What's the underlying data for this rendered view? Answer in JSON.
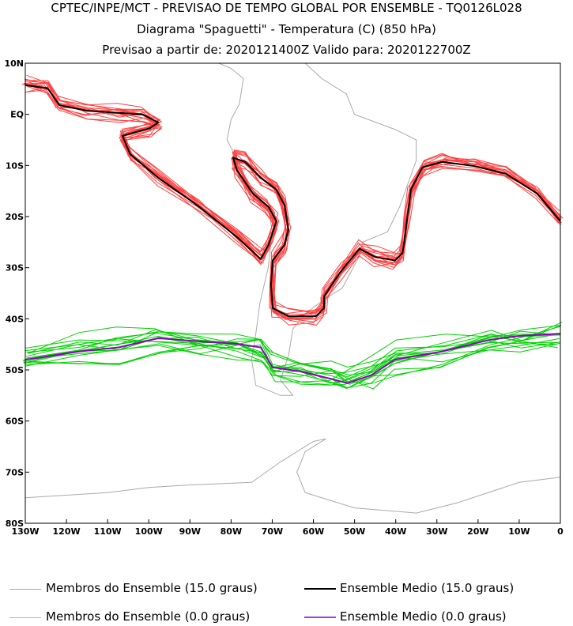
{
  "header": {
    "line1": "CPTEC/INPE/MCT - PREVISAO DE TEMPO GLOBAL POR ENSEMBLE - TQ0126L028",
    "line2": "Diagrama \"Spaguetti\" - Temperatura (C) (850 hPa)",
    "line3": "Previsao a partir de: 2020121400Z  Valido para: 2020122700Z"
  },
  "legend": [
    {
      "label": "Membros do Ensemble (15.0 graus)",
      "color": "#ff4040"
    },
    {
      "label": "Ensemble Medio (15.0 graus)",
      "color": "#000000"
    },
    {
      "label": "Membros do Ensemble (0.0 graus)",
      "color": "#00d000"
    },
    {
      "label": "Ensemble Medio (0.0 graus)",
      "color": "#9000c0"
    }
  ],
  "chart_data": {
    "type": "line",
    "title": "Diagrama \"Spaguetti\" - Temperatura (C) (850 hPa)",
    "xlim": [
      -130,
      0
    ],
    "ylim": [
      -80,
      10
    ],
    "lat_ticks": [
      {
        "v": 10,
        "l": "10N"
      },
      {
        "v": 0,
        "l": "EQ"
      },
      {
        "v": -10,
        "l": "10S"
      },
      {
        "v": -20,
        "l": "20S"
      },
      {
        "v": -30,
        "l": "30S"
      },
      {
        "v": -40,
        "l": "40S"
      },
      {
        "v": -50,
        "l": "50S"
      },
      {
        "v": -60,
        "l": "60S"
      },
      {
        "v": -70,
        "l": "70S"
      },
      {
        "v": -80,
        "l": "80S"
      }
    ],
    "lon_ticks": [
      {
        "v": -130,
        "l": "130W"
      },
      {
        "v": -120,
        "l": "120W"
      },
      {
        "v": -110,
        "l": "110W"
      },
      {
        "v": -100,
        "l": "100W"
      },
      {
        "v": -90,
        "l": "90W"
      },
      {
        "v": -80,
        "l": "80W"
      },
      {
        "v": -70,
        "l": "70W"
      },
      {
        "v": -60,
        "l": "60W"
      },
      {
        "v": -50,
        "l": "50W"
      },
      {
        "v": -40,
        "l": "40W"
      },
      {
        "v": -30,
        "l": "30W"
      },
      {
        "v": -20,
        "l": "20W"
      },
      {
        "v": -10,
        "l": "10W"
      },
      {
        "v": 0,
        "l": "0"
      }
    ],
    "series": [
      {
        "name": "Ensemble Medio (15.0 graus)",
        "color": "#000000",
        "points": [
          [
            -130,
            5.7
          ],
          [
            -124.6,
            5.1
          ],
          [
            -121.7,
            1.8
          ],
          [
            -115,
            0.7
          ],
          [
            -107.3,
            0.3
          ],
          [
            -101.5,
            0
          ],
          [
            -97.7,
            -1.6
          ],
          [
            -99.7,
            -2.7
          ],
          [
            -106.4,
            -4.2
          ],
          [
            -104.5,
            -7.8
          ],
          [
            -97.7,
            -12.4
          ],
          [
            -88.2,
            -17.8
          ],
          [
            -78.6,
            -24
          ],
          [
            -72.8,
            -28.3
          ],
          [
            -70.9,
            -25.5
          ],
          [
            -69,
            -20.9
          ],
          [
            -70.9,
            -18.1
          ],
          [
            -74.7,
            -15.5
          ],
          [
            -78.6,
            -10.9
          ],
          [
            -79.5,
            -8.5
          ],
          [
            -76.6,
            -9.3
          ],
          [
            -72.8,
            -12.4
          ],
          [
            -69,
            -14.7
          ],
          [
            -67,
            -17.8
          ],
          [
            -66.1,
            -22.5
          ],
          [
            -67,
            -25.5
          ],
          [
            -69.9,
            -28.6
          ],
          [
            -70.3,
            -33.3
          ],
          [
            -69.9,
            -37.9
          ],
          [
            -66.1,
            -39.5
          ],
          [
            -59.4,
            -39.5
          ],
          [
            -57.4,
            -37.9
          ],
          [
            -57.4,
            -35.6
          ],
          [
            -53.6,
            -31
          ],
          [
            -48.8,
            -26.3
          ],
          [
            -45,
            -27.9
          ],
          [
            -40.2,
            -28.6
          ],
          [
            -38.3,
            -27.1
          ],
          [
            -37.3,
            -20.9
          ],
          [
            -36.3,
            -14.7
          ],
          [
            -33.5,
            -10.4
          ],
          [
            -28.7,
            -9.3
          ],
          [
            -21,
            -10.1
          ],
          [
            -13.3,
            -11.6
          ],
          [
            -5.6,
            -15.5
          ],
          [
            0,
            -20.9
          ]
        ]
      },
      {
        "name": "Ensemble Medio (0.0 graus)",
        "color": "#9000c0",
        "points": [
          [
            -130,
            -48
          ],
          [
            -117,
            -46.4
          ],
          [
            -107.3,
            -45.6
          ],
          [
            -97.7,
            -43.8
          ],
          [
            -88.2,
            -44.4
          ],
          [
            -78.6,
            -44.9
          ],
          [
            -72.8,
            -45.6
          ],
          [
            -69.9,
            -49.5
          ],
          [
            -63.2,
            -50.3
          ],
          [
            -55.5,
            -51.8
          ],
          [
            -51.7,
            -52.6
          ],
          [
            -45.9,
            -51
          ],
          [
            -40.2,
            -48
          ],
          [
            -28.7,
            -46.4
          ],
          [
            -17.1,
            -44.1
          ],
          [
            -9.5,
            -43.3
          ],
          [
            0,
            -42.9
          ]
        ]
      }
    ]
  }
}
